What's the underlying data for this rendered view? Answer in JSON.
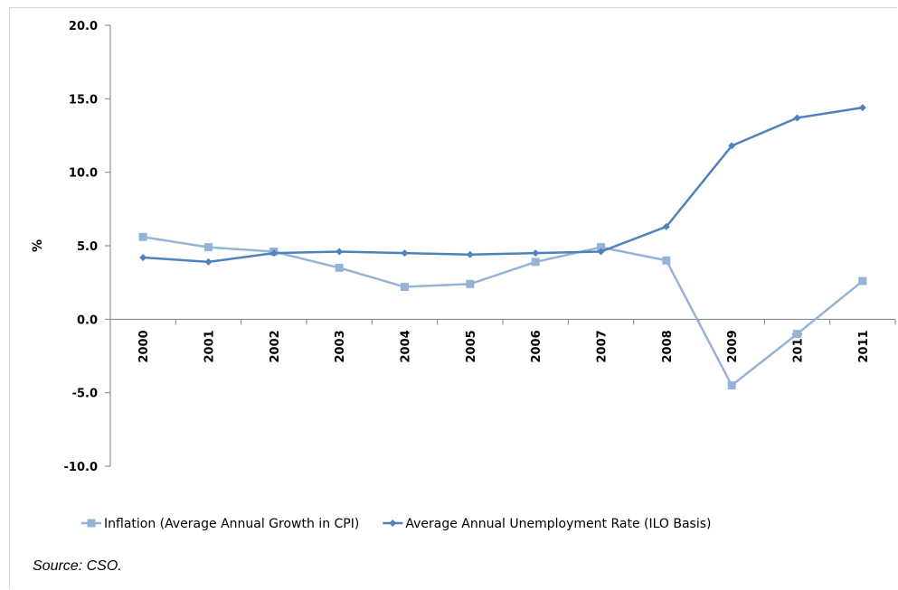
{
  "chart_data": {
    "type": "line",
    "categories": [
      "2000",
      "2001",
      "2002",
      "2003",
      "2004",
      "2005",
      "2006",
      "2007",
      "2008",
      "2009",
      "2010",
      "2011"
    ],
    "ylabel": "%",
    "ylim": [
      -10,
      20
    ],
    "yticks": [
      "20.0",
      "15.0",
      "10.0",
      "5.0",
      "0.0",
      "-5.0",
      "-10.0"
    ],
    "ytick_values": [
      20,
      15,
      10,
      5,
      0,
      -5,
      -10
    ],
    "grid": false,
    "legend_placement": "bottom",
    "series": [
      {
        "name": "Inflation (Average Annual Growth in CPI)",
        "marker": "square",
        "color": "#95b3d7",
        "values": [
          5.6,
          4.9,
          4.6,
          3.5,
          2.2,
          2.4,
          3.9,
          4.9,
          4.0,
          -4.5,
          -1.0,
          2.6
        ]
      },
      {
        "name": "Average Annual Unemployment Rate (ILO Basis)",
        "marker": "diamond",
        "color": "#4f81bd",
        "values": [
          4.2,
          3.9,
          4.5,
          4.6,
          4.5,
          4.4,
          4.5,
          4.6,
          6.3,
          11.8,
          13.7,
          14.4
        ]
      }
    ]
  },
  "source_note": "Source: CSO."
}
